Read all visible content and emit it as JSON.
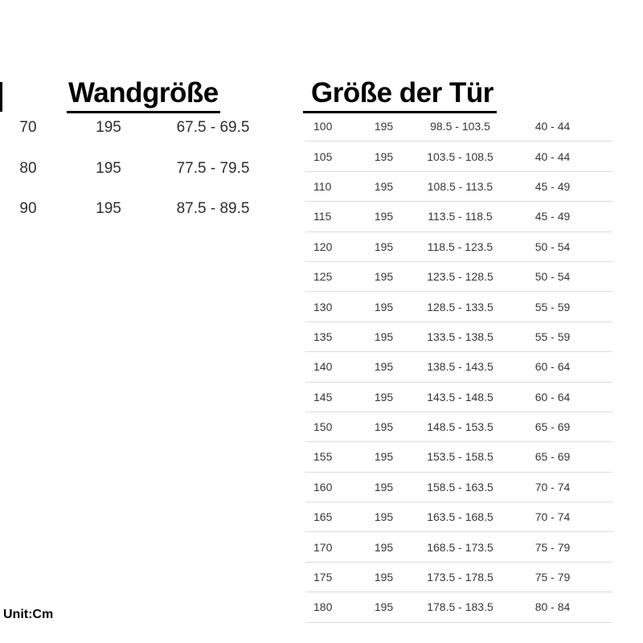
{
  "page": {
    "unit_label": "Unit:Cm"
  },
  "colors": {
    "title_text": "#000000",
    "body_text": "#373737",
    "separator": "#dcdcdc",
    "background": "#ffffff"
  },
  "wand_table": {
    "title": "Wandgröße",
    "rows": [
      [
        "70",
        "195",
        "67.5 - 69.5"
      ],
      [
        "80",
        "195",
        "77.5 - 79.5"
      ],
      [
        "90",
        "195",
        "87.5 - 89.5"
      ]
    ]
  },
  "tuer_table": {
    "title": "Größe der Tür",
    "rows": [
      [
        "100",
        "195",
        "98.5 - 103.5",
        "40 - 44"
      ],
      [
        "105",
        "195",
        "103.5 - 108.5",
        "40 - 44"
      ],
      [
        "110",
        "195",
        "108.5 - 113.5",
        "45 - 49"
      ],
      [
        "115",
        "195",
        "113.5 - 118.5",
        "45 - 49"
      ],
      [
        "120",
        "195",
        "118.5 - 123.5",
        "50 - 54"
      ],
      [
        "125",
        "195",
        "123.5 - 128.5",
        "50 - 54"
      ],
      [
        "130",
        "195",
        "128.5 - 133.5",
        "55 - 59"
      ],
      [
        "135",
        "195",
        "133.5 - 138.5",
        "55 - 59"
      ],
      [
        "140",
        "195",
        "138.5 - 143.5",
        "60 - 64"
      ],
      [
        "145",
        "195",
        "143.5 - 148.5",
        "60 - 64"
      ],
      [
        "150",
        "195",
        "148.5 - 153.5",
        "65 - 69"
      ],
      [
        "155",
        "195",
        "153.5 - 158.5",
        "65 - 69"
      ],
      [
        "160",
        "195",
        "158.5 - 163.5",
        "70 - 74"
      ],
      [
        "165",
        "195",
        "163.5 - 168.5",
        "70 - 74"
      ],
      [
        "170",
        "195",
        "168.5 - 173.5",
        "75 - 79"
      ],
      [
        "175",
        "195",
        "173.5 - 178.5",
        "75 - 79"
      ],
      [
        "180",
        "195",
        "178.5 - 183.5",
        "80 - 84"
      ]
    ]
  }
}
